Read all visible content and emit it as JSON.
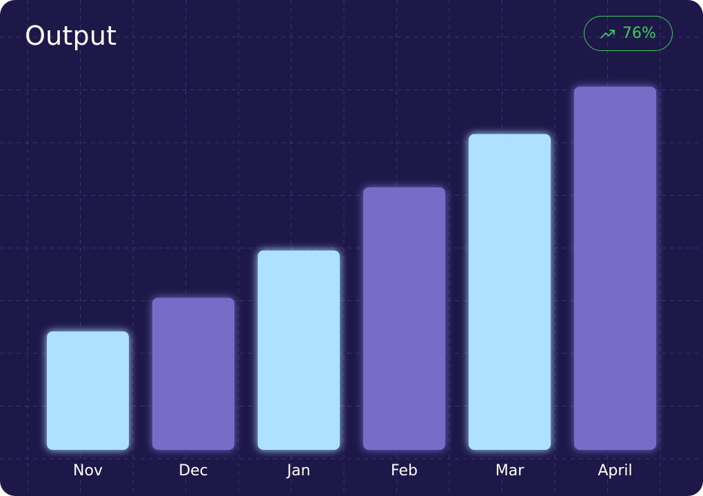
{
  "header": {
    "title": "Output"
  },
  "badge": {
    "value": "76%",
    "icon": "trending-up-icon",
    "color": "#3fcf58"
  },
  "colors": {
    "background": "#1e1849",
    "bar_light": "#aee0ff",
    "bar_purple": "#786cc9",
    "text": "#ffffff",
    "grid": "#3b3574"
  },
  "chart_data": {
    "type": "bar",
    "title": "Output",
    "categories": [
      "Nov",
      "Dec",
      "Jan",
      "Feb",
      "Mar",
      "April"
    ],
    "values": [
      30,
      38.5,
      50.5,
      66.5,
      80,
      92
    ],
    "ylim": [
      0,
      100
    ],
    "grid": true,
    "legend": "none",
    "xlabel": "",
    "ylabel": ""
  }
}
